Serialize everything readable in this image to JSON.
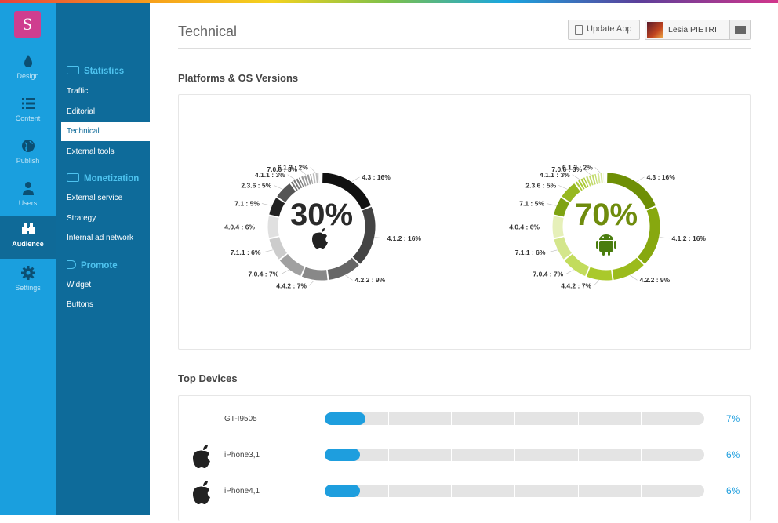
{
  "app": {
    "logo_letter": "S"
  },
  "rail": [
    {
      "label": "Design",
      "icon": "drop-icon"
    },
    {
      "label": "Content",
      "icon": "list-icon"
    },
    {
      "label": "Publish",
      "icon": "globe-icon"
    },
    {
      "label": "Users",
      "icon": "user-icon"
    },
    {
      "label": "Audience",
      "icon": "binoculars-icon",
      "active": true
    },
    {
      "label": "Settings",
      "icon": "gear-icon"
    }
  ],
  "subnav": {
    "statistics": {
      "title": "Statistics",
      "items": [
        "Traffic",
        "Editorial",
        "Technical",
        "External tools"
      ],
      "active": "Technical"
    },
    "monetization": {
      "title": "Monetization",
      "items": [
        "External service",
        "Strategy",
        "Internal ad network"
      ]
    },
    "promote": {
      "title": "Promote",
      "items": [
        "Widget",
        "Buttons"
      ]
    }
  },
  "header": {
    "title": "Technical",
    "update_label": "Update App",
    "user_name": "Lesia PIETRI"
  },
  "platforms": {
    "title": "Platforms & OS Versions",
    "ios": {
      "percent": "30%",
      "color": "#222222"
    },
    "android": {
      "percent": "70%",
      "color": "#7a9a0a"
    }
  },
  "chart_data": [
    {
      "type": "pie",
      "center_label": "30%",
      "labels": [
        "4.3 : 16%",
        "4.1.2 : 16%",
        "4.2.2 : 9%",
        "4.4.2 : 7%",
        "7.0.4 : 7%",
        "7.1.1 : 6%",
        "4.0.4 : 6%",
        "7.1 : 5%",
        "2.3.6 : 5%",
        "4.1.1 : 3%",
        "7.0.6 : 3%",
        "6.1.3 : 2%"
      ],
      "values": [
        16,
        16,
        9,
        7,
        7,
        6,
        6,
        5,
        5,
        3,
        3,
        2
      ]
    },
    {
      "type": "pie",
      "center_label": "70%",
      "labels": [
        "4.3 : 16%",
        "4.1.2 : 16%",
        "4.2.2 : 9%",
        "4.4.2 : 7%",
        "7.0.4 : 7%",
        "7.1.1 : 6%",
        "4.0.4 : 6%",
        "7.1 : 5%",
        "2.3.6 : 5%",
        "4.1.1 : 3%",
        "7.0.6 : 3%",
        "6.1.3 : 2%"
      ],
      "values": [
        16,
        16,
        9,
        7,
        7,
        6,
        6,
        5,
        5,
        3,
        3,
        2
      ]
    }
  ],
  "devices": {
    "title": "Top Devices",
    "rows": [
      {
        "name": "GT-I9505",
        "percent": "7%",
        "value": 0.07,
        "icon": ""
      },
      {
        "name": "iPhone3,1",
        "percent": "6%",
        "value": 0.06,
        "icon": "apple-icon"
      },
      {
        "name": "iPhone4,1",
        "percent": "6%",
        "value": 0.06,
        "icon": "apple-icon"
      }
    ]
  }
}
